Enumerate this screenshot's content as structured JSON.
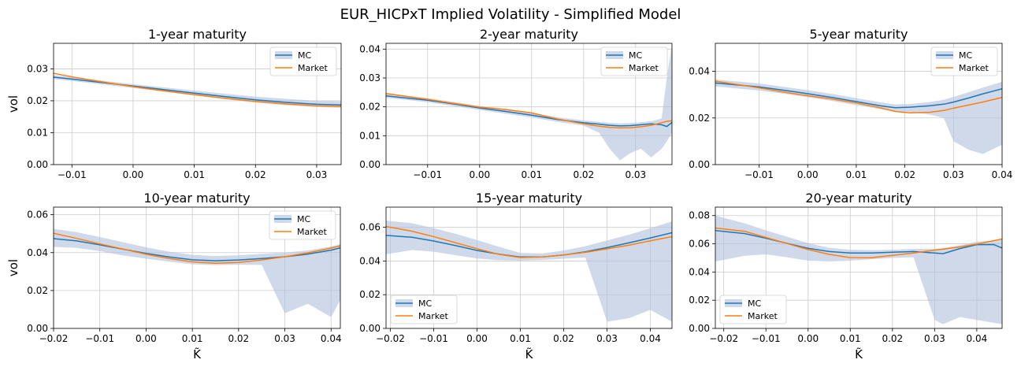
{
  "title": "EUR_HICPxT Implied Volatility - Simplified Model",
  "colors": {
    "mc": "#1f77b4",
    "market": "#ff7f0e",
    "band": "#b0bfdc",
    "grid": "#cccccc"
  },
  "chart_data": [
    {
      "type": "line",
      "title": "1-year maturity",
      "xlabel": "",
      "ylabel": "vol",
      "xlim": [
        -0.013,
        0.034
      ],
      "ylim": [
        0.0,
        0.038
      ],
      "xticks": [
        -0.01,
        0.0,
        0.01,
        0.02,
        0.03
      ],
      "yticks": [
        0.0,
        0.01,
        0.02,
        0.03
      ],
      "xtick_labels": [
        "−0.01",
        "0.00",
        "0.01",
        "0.02",
        "0.03"
      ],
      "ytick_labels": [
        "0.00",
        "0.01",
        "0.02",
        "0.03"
      ],
      "grid": true,
      "legend": "top-right",
      "x": [
        -0.013,
        -0.01,
        -0.005,
        0.0,
        0.005,
        0.01,
        0.015,
        0.02,
        0.025,
        0.03,
        0.034
      ],
      "series": [
        {
          "name": "MC",
          "values": [
            0.0274,
            0.0268,
            0.0257,
            0.0246,
            0.0235,
            0.0224,
            0.0213,
            0.0203,
            0.0195,
            0.0189,
            0.0187
          ]
        },
        {
          "name": "Market",
          "values": [
            0.0286,
            0.0275,
            0.0259,
            0.0244,
            0.0231,
            0.0219,
            0.0208,
            0.0198,
            0.019,
            0.0184,
            0.0182
          ]
        }
      ],
      "band": {
        "upper": [
          0.028,
          0.0274,
          0.0263,
          0.0252,
          0.0242,
          0.0232,
          0.0222,
          0.0213,
          0.0206,
          0.02,
          0.0198
        ],
        "lower": [
          0.0268,
          0.0262,
          0.0251,
          0.024,
          0.0229,
          0.0217,
          0.0205,
          0.0194,
          0.0186,
          0.018,
          0.0178
        ]
      }
    },
    {
      "type": "line",
      "title": "2-year maturity",
      "xlabel": "",
      "ylabel": "",
      "xlim": [
        -0.018,
        0.037
      ],
      "ylim": [
        0.0,
        0.042
      ],
      "xticks": [
        -0.01,
        0.0,
        0.01,
        0.02,
        0.03
      ],
      "yticks": [
        0.0,
        0.01,
        0.02,
        0.03,
        0.04
      ],
      "xtick_labels": [
        "−0.01",
        "0.00",
        "0.01",
        "0.02",
        "0.03"
      ],
      "ytick_labels": [
        "0.00",
        "0.01",
        "0.02",
        "0.03",
        "0.04"
      ],
      "grid": true,
      "legend": "top-right",
      "x": [
        -0.018,
        -0.01,
        -0.005,
        0.0,
        0.005,
        0.01,
        0.015,
        0.02,
        0.023,
        0.025,
        0.027,
        0.029,
        0.031,
        0.033,
        0.035,
        0.036,
        0.037
      ],
      "series": [
        {
          "name": "MC",
          "values": [
            0.0238,
            0.0223,
            0.021,
            0.0196,
            0.0184,
            0.0171,
            0.0156,
            0.0145,
            0.014,
            0.0136,
            0.0134,
            0.0135,
            0.0138,
            0.0141,
            0.0138,
            0.0132,
            0.0146
          ]
        },
        {
          "name": "Market",
          "values": [
            0.0246,
            0.0226,
            0.0212,
            0.0199,
            0.0191,
            0.0179,
            0.0158,
            0.0141,
            0.0133,
            0.0129,
            0.0127,
            0.0128,
            0.0131,
            0.0136,
            0.0145,
            0.015,
            0.0152
          ]
        }
      ],
      "band": {
        "upper": [
          0.0245,
          0.023,
          0.0217,
          0.0203,
          0.0192,
          0.0179,
          0.0164,
          0.0153,
          0.0148,
          0.0145,
          0.0143,
          0.0144,
          0.0147,
          0.015,
          0.016,
          0.03,
          0.042
        ],
        "lower": [
          0.0231,
          0.0216,
          0.0203,
          0.0189,
          0.0176,
          0.0163,
          0.0148,
          0.0135,
          0.011,
          0.0055,
          0.0015,
          0.004,
          0.0055,
          0.0025,
          0.0055,
          0.008,
          0.011
        ]
      }
    },
    {
      "type": "line",
      "title": "5-year maturity",
      "xlabel": "",
      "ylabel": "",
      "xlim": [
        -0.019,
        0.04
      ],
      "ylim": [
        0.0,
        0.052
      ],
      "xticks": [
        -0.01,
        0.0,
        0.01,
        0.02,
        0.03,
        0.04
      ],
      "yticks": [
        0.0,
        0.02,
        0.04
      ],
      "xtick_labels": [
        "−0.01",
        "0.00",
        "0.01",
        "0.02",
        "0.03",
        "0.04"
      ],
      "ytick_labels": [
        "0.00",
        "0.02",
        "0.04"
      ],
      "grid": true,
      "legend": "top-right",
      "x": [
        -0.019,
        -0.01,
        -0.005,
        0.0,
        0.005,
        0.01,
        0.015,
        0.018,
        0.021,
        0.025,
        0.028,
        0.03,
        0.033,
        0.036,
        0.04
      ],
      "series": [
        {
          "name": "MC",
          "values": [
            0.035,
            0.0333,
            0.0319,
            0.0304,
            0.0288,
            0.027,
            0.0252,
            0.0244,
            0.0246,
            0.0252,
            0.0259,
            0.0268,
            0.0285,
            0.0303,
            0.0325
          ]
        },
        {
          "name": "Market",
          "values": [
            0.0358,
            0.0329,
            0.0311,
            0.0295,
            0.0281,
            0.0264,
            0.0243,
            0.0228,
            0.0222,
            0.0224,
            0.0232,
            0.0242,
            0.0255,
            0.0268,
            0.0288
          ]
        }
      ],
      "band": {
        "upper": [
          0.0365,
          0.0348,
          0.0334,
          0.0319,
          0.0303,
          0.0285,
          0.0267,
          0.0258,
          0.026,
          0.0268,
          0.0278,
          0.029,
          0.031,
          0.033,
          0.0355
        ],
        "lower": [
          0.0335,
          0.0318,
          0.0304,
          0.0289,
          0.0273,
          0.0255,
          0.0237,
          0.0229,
          0.0226,
          0.0215,
          0.02,
          0.01,
          0.0065,
          0.0045,
          0.0085
        ]
      }
    },
    {
      "type": "line",
      "title": "10-year maturity",
      "xlabel": "K̃",
      "ylabel": "vol",
      "xlim": [
        -0.02,
        0.042
      ],
      "ylim": [
        0.0,
        0.064
      ],
      "xticks": [
        -0.02,
        -0.01,
        0.0,
        0.01,
        0.02,
        0.03,
        0.04
      ],
      "yticks": [
        0.0,
        0.02,
        0.04,
        0.06
      ],
      "xtick_labels": [
        "−0.02",
        "−0.01",
        "0.00",
        "0.01",
        "0.02",
        "0.03",
        "0.04"
      ],
      "ytick_labels": [
        "0.00",
        "0.02",
        "0.04",
        "0.06"
      ],
      "grid": true,
      "legend": "top-right",
      "x": [
        -0.02,
        -0.015,
        -0.01,
        -0.005,
        0.0,
        0.005,
        0.01,
        0.015,
        0.02,
        0.025,
        0.03,
        0.035,
        0.04,
        0.042
      ],
      "series": [
        {
          "name": "MC",
          "values": [
            0.0474,
            0.0462,
            0.0441,
            0.0418,
            0.0396,
            0.0377,
            0.0362,
            0.0357,
            0.0361,
            0.0369,
            0.0378,
            0.0392,
            0.0413,
            0.0425
          ]
        },
        {
          "name": "Market",
          "values": [
            0.0502,
            0.0475,
            0.0446,
            0.0419,
            0.0391,
            0.0369,
            0.0351,
            0.0344,
            0.0348,
            0.0361,
            0.0378,
            0.0399,
            0.0424,
            0.0436
          ]
        }
      ],
      "band": {
        "upper": [
          0.0525,
          0.0508,
          0.0482,
          0.0455,
          0.0428,
          0.0405,
          0.0388,
          0.0382,
          0.0386,
          0.0393,
          0.04,
          0.0412,
          0.0432,
          0.0445
        ],
        "lower": [
          0.043,
          0.0425,
          0.0408,
          0.0385,
          0.0368,
          0.0352,
          0.0338,
          0.0334,
          0.0336,
          0.0335,
          0.008,
          0.013,
          0.006,
          0.015
        ]
      }
    },
    {
      "type": "line",
      "title": "15-year maturity",
      "xlabel": "K̃",
      "ylabel": "",
      "xlim": [
        -0.021,
        0.045
      ],
      "ylim": [
        0.0,
        0.072
      ],
      "xticks": [
        -0.02,
        -0.01,
        0.0,
        0.01,
        0.02,
        0.03,
        0.04
      ],
      "yticks": [
        0.0,
        0.02,
        0.04,
        0.06
      ],
      "xtick_labels": [
        "−0.02",
        "−0.01",
        "0.00",
        "0.01",
        "0.02",
        "0.03",
        "0.04"
      ],
      "ytick_labels": [
        "0.00",
        "0.02",
        "0.04",
        "0.06"
      ],
      "grid": true,
      "legend": "bottom-left",
      "x": [
        -0.021,
        -0.015,
        -0.01,
        -0.005,
        0.0,
        0.005,
        0.01,
        0.015,
        0.02,
        0.025,
        0.03,
        0.035,
        0.04,
        0.045
      ],
      "series": [
        {
          "name": "MC",
          "values": [
            0.0552,
            0.0541,
            0.0519,
            0.0492,
            0.0463,
            0.0441,
            0.0424,
            0.0424,
            0.0436,
            0.0455,
            0.048,
            0.0508,
            0.0537,
            0.0568
          ]
        },
        {
          "name": "Market",
          "values": [
            0.0605,
            0.0577,
            0.0545,
            0.0509,
            0.0473,
            0.044,
            0.0421,
            0.0424,
            0.0436,
            0.0452,
            0.0472,
            0.0494,
            0.052,
            0.0545
          ]
        }
      ],
      "band": {
        "upper": [
          0.064,
          0.0625,
          0.0595,
          0.0562,
          0.0525,
          0.0485,
          0.0448,
          0.0445,
          0.0462,
          0.0488,
          0.0522,
          0.0556,
          0.0595,
          0.0635
        ],
        "lower": [
          0.044,
          0.0465,
          0.0455,
          0.0435,
          0.0415,
          0.0405,
          0.0402,
          0.0406,
          0.0414,
          0.0421,
          0.004,
          0.006,
          0.011,
          0.004
        ]
      }
    },
    {
      "type": "line",
      "title": "20-year maturity",
      "xlabel": "K̃",
      "ylabel": "",
      "xlim": [
        -0.022,
        0.046
      ],
      "ylim": [
        0.0,
        0.086
      ],
      "xticks": [
        -0.02,
        -0.01,
        0.0,
        0.01,
        0.02,
        0.03,
        0.04
      ],
      "yticks": [
        0.0,
        0.02,
        0.04,
        0.06,
        0.08
      ],
      "xtick_labels": [
        "−0.02",
        "−0.01",
        "0.00",
        "0.01",
        "0.02",
        "0.03",
        "0.04"
      ],
      "ytick_labels": [
        "0.00",
        "0.02",
        "0.04",
        "0.06",
        "0.08"
      ],
      "grid": true,
      "legend": "bottom-left",
      "x": [
        -0.022,
        -0.015,
        -0.01,
        -0.005,
        0.0,
        0.005,
        0.01,
        0.015,
        0.02,
        0.025,
        0.03,
        0.032,
        0.036,
        0.04,
        0.044,
        0.046
      ],
      "series": [
        {
          "name": "MC",
          "values": [
            0.0694,
            0.0672,
            0.0639,
            0.0603,
            0.0568,
            0.0545,
            0.0535,
            0.0535,
            0.054,
            0.0545,
            0.0535,
            0.053,
            0.0566,
            0.0594,
            0.0595,
            0.057
          ]
        },
        {
          "name": "Market",
          "values": [
            0.0712,
            0.0688,
            0.0645,
            0.0602,
            0.0559,
            0.0525,
            0.0502,
            0.0501,
            0.0518,
            0.0535,
            0.0555,
            0.0562,
            0.0578,
            0.0598,
            0.0622,
            0.0634
          ]
        }
      ],
      "band": {
        "upper": [
          0.08,
          0.0745,
          0.0695,
          0.065,
          0.0605,
          0.0572,
          0.0558,
          0.0555,
          0.0558,
          0.0564,
          0.0565,
          0.057,
          0.059,
          0.0615,
          0.0625,
          0.063
        ],
        "lower": [
          0.0475,
          0.0515,
          0.0525,
          0.0505,
          0.048,
          0.0475,
          0.048,
          0.049,
          0.05,
          0.0505,
          0.006,
          0.003,
          0.008,
          0.006,
          0.004,
          0.003
        ]
      }
    }
  ]
}
